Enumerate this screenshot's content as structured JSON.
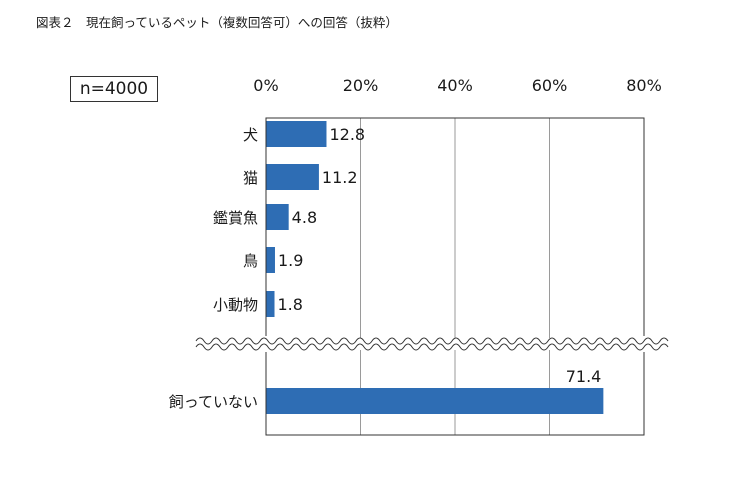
{
  "figure_title": "図表２　現在飼っているペット（複数回答可）への回答（抜粋）",
  "sample_size": "n=4000",
  "colors": {
    "bar": "#2e6db4",
    "grid": "#9a9a9a",
    "frame": "#333333"
  },
  "chart_data": {
    "type": "bar",
    "orientation": "horizontal",
    "categories": [
      "犬",
      "猫",
      "鑑賞魚",
      "鳥",
      "小動物",
      "飼っていない"
    ],
    "values": [
      12.8,
      11.2,
      4.8,
      1.9,
      1.8,
      71.4
    ],
    "value_labels": [
      "12.8",
      "11.2",
      "4.8",
      "1.9",
      "1.8",
      "71.4"
    ],
    "xlim": [
      0,
      80
    ],
    "xticks": [
      "0%",
      "20%",
      "40%",
      "60%",
      "80%"
    ],
    "axis_break_after_index": 4,
    "grid": true,
    "title": "",
    "xlabel": "",
    "ylabel": ""
  }
}
